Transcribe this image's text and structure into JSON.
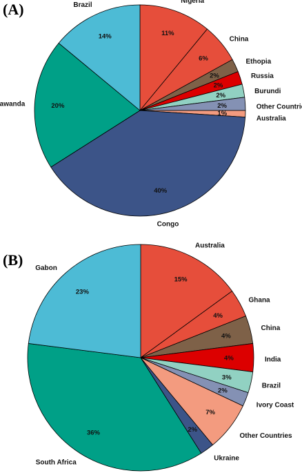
{
  "chart_data": [
    {
      "type": "pie",
      "panel_label": "(A)",
      "slices": [
        {
          "label": "Nigeria",
          "value": 11,
          "value_label": "11%",
          "color": "#E64E3B"
        },
        {
          "label": "China",
          "value": 6,
          "value_label": "6%",
          "color": "#E64E3B"
        },
        {
          "label": "Ethopia",
          "value": 2,
          "value_label": "2%",
          "color": "#7E6148"
        },
        {
          "label": "Russia",
          "value": 2,
          "value_label": "2%",
          "color": "#DC0000"
        },
        {
          "label": "Burundi",
          "value": 2,
          "value_label": "2%",
          "color": "#91D1C2"
        },
        {
          "label": "Other Countries",
          "value": 2,
          "value_label": "2%",
          "color": "#8491B4"
        },
        {
          "label": "Australia",
          "value": 1,
          "value_label": "1%",
          "color": "#F39B7F"
        },
        {
          "label": "Congo",
          "value": 40,
          "value_label": "40%",
          "color": "#3C5488"
        },
        {
          "label": "Rawanda",
          "value": 20,
          "value_label": "20%",
          "color": "#00A087"
        },
        {
          "label": "Brazil",
          "value": 14,
          "value_label": "14%",
          "color": "#4DBBD5"
        }
      ]
    },
    {
      "type": "pie",
      "panel_label": "(B)",
      "slices": [
        {
          "label": "Australia",
          "value": 15,
          "value_label": "15%",
          "color": "#E64E3B"
        },
        {
          "label": "Ghana",
          "value": 4,
          "value_label": "4%",
          "color": "#E64E3B"
        },
        {
          "label": "China",
          "value": 4,
          "value_label": "4%",
          "color": "#7E6148"
        },
        {
          "label": "India",
          "value": 4,
          "value_label": "4%",
          "color": "#DC0000"
        },
        {
          "label": "Brazil",
          "value": 3,
          "value_label": "3%",
          "color": "#91D1C2"
        },
        {
          "label": "Ivory Coast",
          "value": 2,
          "value_label": "2%",
          "color": "#8491B4"
        },
        {
          "label": "Other Countries",
          "value": 7,
          "value_label": "7%",
          "color": "#F39B7F"
        },
        {
          "label": "Ukraine",
          "value": 2,
          "value_label": "2%",
          "color": "#3C5488"
        },
        {
          "label": "South Africa",
          "value": 36,
          "value_label": "36%",
          "color": "#00A087"
        },
        {
          "label": "Gabon",
          "value": 23,
          "value_label": "23%",
          "color": "#4DBBD5"
        }
      ]
    }
  ]
}
